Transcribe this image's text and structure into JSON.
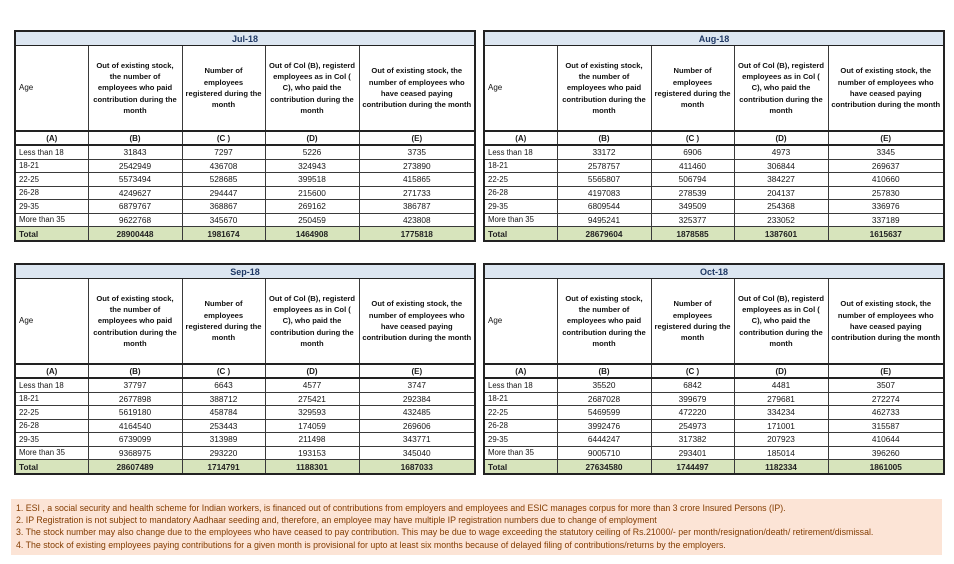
{
  "column_headers": {
    "age": "Age",
    "b": "Out of existing stock, the number of employees who paid contribution during the month",
    "c": "Number of employees registered during the month",
    "d": "Out of Col (B), registerd employees as in Col ( C), who paid the contribution during the month",
    "e": "Out of existing stock, the number of employees who have ceased paying contribution during the month",
    "letters": [
      "(A)",
      "(B)",
      "(C )",
      "(D)",
      "(E)"
    ]
  },
  "tables": [
    {
      "title": "Jul-18",
      "rows": [
        {
          "age": "Less than 18",
          "values": [
            31843,
            7297,
            5226,
            3735
          ]
        },
        {
          "age": "18-21",
          "values": [
            2542949,
            436708,
            324943,
            273890
          ]
        },
        {
          "age": "22-25",
          "values": [
            5573494,
            528685,
            399518,
            415865
          ]
        },
        {
          "age": "26-28",
          "values": [
            4249627,
            294447,
            215600,
            271733
          ]
        },
        {
          "age": "29-35",
          "values": [
            6879767,
            368867,
            269162,
            386787
          ]
        },
        {
          "age": "More than 35",
          "values": [
            9622768,
            345670,
            250459,
            423808
          ]
        }
      ],
      "total": {
        "label": "Total",
        "values": [
          28900448,
          1981674,
          1464908,
          1775818
        ]
      }
    },
    {
      "title": "Aug-18",
      "rows": [
        {
          "age": "Less than 18",
          "values": [
            33172,
            6906,
            4973,
            3345
          ]
        },
        {
          "age": "18-21",
          "values": [
            2578757,
            411460,
            306844,
            269637
          ]
        },
        {
          "age": "22-25",
          "values": [
            5565807,
            506794,
            384227,
            410660
          ]
        },
        {
          "age": "26-28",
          "values": [
            4197083,
            278539,
            204137,
            257830
          ]
        },
        {
          "age": "29-35",
          "values": [
            6809544,
            349509,
            254368,
            336976
          ]
        },
        {
          "age": "More than 35",
          "values": [
            9495241,
            325377,
            233052,
            337189
          ]
        }
      ],
      "total": {
        "label": "Total",
        "values": [
          28679604,
          1878585,
          1387601,
          1615637
        ]
      }
    },
    {
      "title": "Sep-18",
      "rows": [
        {
          "age": "Less than 18",
          "values": [
            37797,
            6643,
            4577,
            3747
          ]
        },
        {
          "age": "18-21",
          "values": [
            2677898,
            388712,
            275421,
            292384
          ]
        },
        {
          "age": "22-25",
          "values": [
            5619180,
            458784,
            329593,
            432485
          ]
        },
        {
          "age": "26-28",
          "values": [
            4164540,
            253443,
            174059,
            269606
          ]
        },
        {
          "age": "29-35",
          "values": [
            6739099,
            313989,
            211498,
            343771
          ]
        },
        {
          "age": "More than 35",
          "values": [
            9368975,
            293220,
            193153,
            345040
          ]
        }
      ],
      "total": {
        "label": "Total",
        "values": [
          28607489,
          1714791,
          1188301,
          1687033
        ]
      }
    },
    {
      "title": "Oct-18",
      "rows": [
        {
          "age": "Less than 18",
          "values": [
            35520,
            6842,
            4481,
            3507
          ]
        },
        {
          "age": "18-21",
          "values": [
            2687028,
            399679,
            279681,
            272274
          ]
        },
        {
          "age": "22-25",
          "values": [
            5469599,
            472220,
            334234,
            462733
          ]
        },
        {
          "age": "26-28",
          "values": [
            3992476,
            254973,
            171001,
            315587
          ]
        },
        {
          "age": "29-35",
          "values": [
            6444247,
            317382,
            207923,
            410644
          ]
        },
        {
          "age": "More than 35",
          "values": [
            9005710,
            293401,
            185014,
            396260
          ]
        }
      ],
      "total": {
        "label": "Total",
        "values": [
          27634580,
          1744497,
          1182334,
          1861005
        ]
      }
    }
  ],
  "footnotes": [
    "1. ESI , a social security and health scheme for Indian workers, is financed out of contributions from employers and employees and ESIC manages corpus for more than 3 crore Insured Persons (IP).",
    "2. IP Registration is not subject to mandatory Aadhaar seeding and, therefore, an employee may have multiple IP registration numbers due to change of employment",
    "3. The stock number may also change due to the employees who have ceased to pay contribution. This may be due to wage exceeding the statutory ceiling of Rs.21000/- per month/resignation/death/ retirement/dismissal.",
    "4. The stock of existing employees paying contributions for a given month is provisional for upto at least six months because of delayed filing of contributions/returns by the employers."
  ],
  "colors": {
    "month_header_bg": "#DCE6F1",
    "total_row_bg": "#D7E4BC",
    "footnote_bg": "#FCE4D6",
    "footnote_text": "#833C00",
    "month_title_text": "#1F3864"
  }
}
